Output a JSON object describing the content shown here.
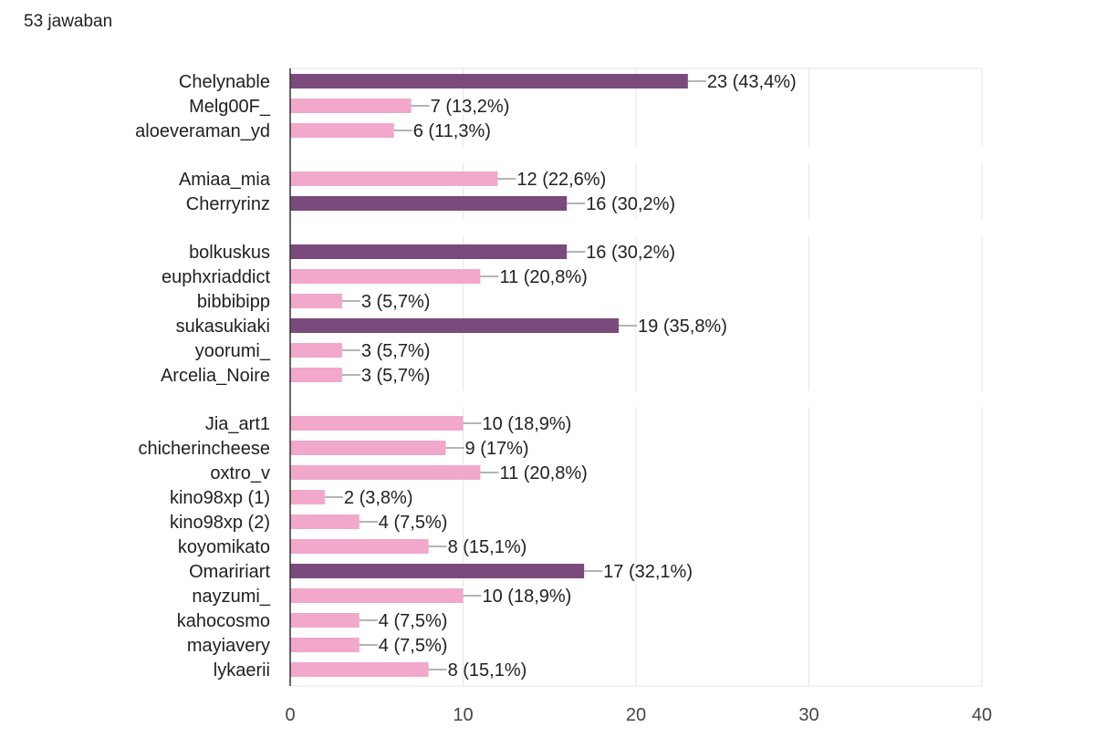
{
  "summary": "53 jawaban",
  "chart_data": {
    "type": "bar",
    "orientation": "horizontal",
    "xlim": [
      0,
      40
    ],
    "x_ticks": [
      "0",
      "10",
      "20",
      "30",
      "40"
    ],
    "grid": true,
    "colors": {
      "highlight": "#7b4a7d",
      "normal": "#f1a8ca",
      "axis": "#333333",
      "grid": "#e6e6e6",
      "connector": "#888888"
    },
    "groups": [
      {
        "bars": [
          {
            "label": "Chelynable",
            "value": 23,
            "display": "23 (43,4%)",
            "highlight": true
          },
          {
            "label": "Melg00F_",
            "value": 7,
            "display": "7 (13,2%)",
            "highlight": false
          },
          {
            "label": "aloeveraman_yd",
            "value": 6,
            "display": "6 (11,3%)",
            "highlight": false
          }
        ]
      },
      {
        "bars": [
          {
            "label": "Amiaa_mia",
            "value": 12,
            "display": "12 (22,6%)",
            "highlight": false
          },
          {
            "label": "Cherryrinz",
            "value": 16,
            "display": "16 (30,2%)",
            "highlight": true
          }
        ]
      },
      {
        "bars": [
          {
            "label": "bolkuskus",
            "value": 16,
            "display": "16 (30,2%)",
            "highlight": true
          },
          {
            "label": "euphxriaddict",
            "value": 11,
            "display": "11 (20,8%)",
            "highlight": false
          },
          {
            "label": "bibbibipp",
            "value": 3,
            "display": "3 (5,7%)",
            "highlight": false
          },
          {
            "label": "sukasukiaki",
            "value": 19,
            "display": "19 (35,8%)",
            "highlight": true
          },
          {
            "label": "yoorumi_",
            "value": 3,
            "display": "3 (5,7%)",
            "highlight": false
          },
          {
            "label": "Arcelia_Noire",
            "value": 3,
            "display": "3 (5,7%)",
            "highlight": false
          }
        ]
      },
      {
        "bars": [
          {
            "label": "Jia_art1",
            "value": 10,
            "display": "10 (18,9%)",
            "highlight": false
          },
          {
            "label": "chicherincheese",
            "value": 9,
            "display": "9 (17%)",
            "highlight": false
          },
          {
            "label": "oxtro_v",
            "value": 11,
            "display": "11 (20,8%)",
            "highlight": false
          },
          {
            "label": "kino98xp (1)",
            "value": 2,
            "display": "2 (3,8%)",
            "highlight": false
          },
          {
            "label": "kino98xp (2)",
            "value": 4,
            "display": "4 (7,5%)",
            "highlight": false
          },
          {
            "label": "koyomikato",
            "value": 8,
            "display": "8 (15,1%)",
            "highlight": false
          },
          {
            "label": "Omaririart",
            "value": 17,
            "display": "17 (32,1%)",
            "highlight": true
          },
          {
            "label": "nayzumi_",
            "value": 10,
            "display": "10 (18,9%)",
            "highlight": false
          },
          {
            "label": "kahocosmo",
            "value": 4,
            "display": "4 (7,5%)",
            "highlight": false
          },
          {
            "label": "mayiavery",
            "value": 4,
            "display": "4 (7,5%)",
            "highlight": false
          },
          {
            "label": "lykaerii",
            "value": 8,
            "display": "8 (15,1%)",
            "highlight": false
          }
        ]
      }
    ]
  }
}
